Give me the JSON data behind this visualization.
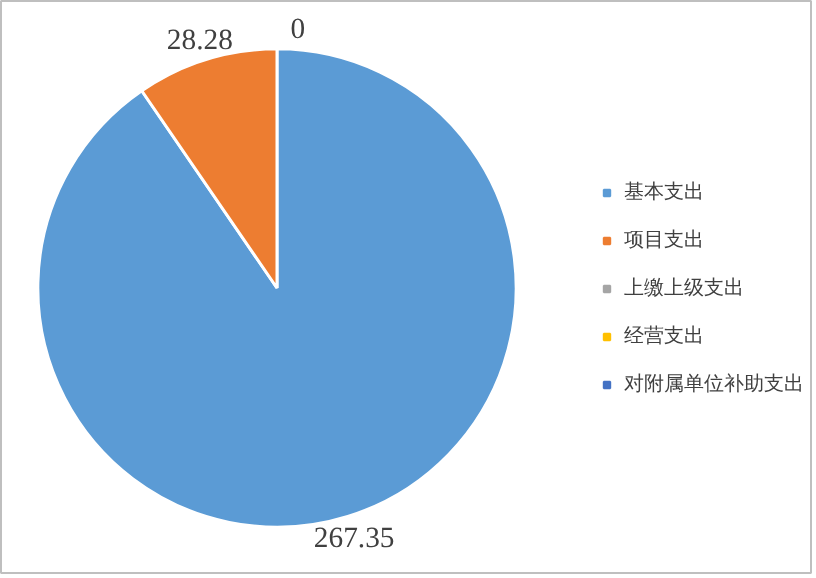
{
  "chart_data": {
    "type": "pie",
    "categories": [
      "基本支出",
      "项目支出",
      "上缴上级支出",
      "经营支出",
      "对附属单位补助支出"
    ],
    "values": [
      267.35,
      28.28,
      0,
      0,
      0
    ],
    "colors": [
      "#5b9bd5",
      "#ed7d31",
      "#a5a5a5",
      "#ffc000",
      "#4472c4"
    ],
    "value_labels": [
      "267.35",
      "28.28",
      "0",
      null,
      null
    ],
    "legend": "right"
  }
}
